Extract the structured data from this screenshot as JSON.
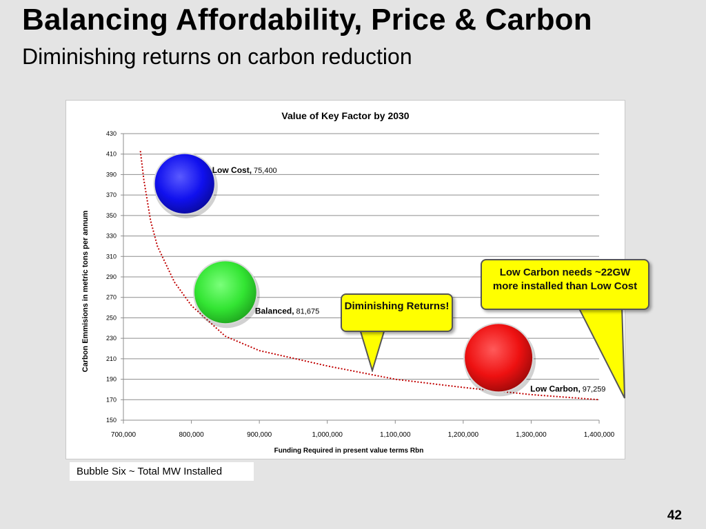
{
  "slide": {
    "title": "Balancing Affordability, Price & Carbon",
    "subtitle": "Diminishing returns on carbon reduction",
    "footnote": "Bubble Six ~ Total MW Installed",
    "page_number": "42"
  },
  "callouts": {
    "diminishing": "Diminishing Returns!",
    "low_carbon_needs": "Low Carbon needs ~22GW more installed than Low Cost"
  },
  "colors": {
    "low_cost": "#1010ee",
    "balanced": "#33e533",
    "low_carbon": "#ee1111",
    "trendline": "#c00000",
    "callout_fill": "#ffff00"
  },
  "chart_data": {
    "type": "scatter",
    "title": "Value of Key Factor by 2030",
    "xlabel": "Funding Required in present value terms Rbn",
    "ylabel": "Carbon Emmisions in metric tons per annum",
    "xlim": [
      700000,
      1400000
    ],
    "ylim": [
      150,
      430
    ],
    "x_ticks": [
      "700,000",
      "800,000",
      "900,000",
      "1,000,000",
      "1,100,000",
      "1,200,000",
      "1,300,000",
      "1,400,000"
    ],
    "y_ticks": [
      "150",
      "170",
      "190",
      "210",
      "230",
      "250",
      "270",
      "290",
      "310",
      "330",
      "350",
      "370",
      "390",
      "410",
      "430"
    ],
    "grid": "horizontal",
    "series": [
      {
        "name": "Low Cost",
        "x": 790000,
        "y": 381,
        "size_label": "75,400"
      },
      {
        "name": "Balanced",
        "x": 850000,
        "y": 275,
        "size_label": "81,675"
      },
      {
        "name": "Low Carbon",
        "x": 1252000,
        "y": 211,
        "size_label": "97,259"
      }
    ],
    "trendline": {
      "style": "dotted",
      "points": [
        [
          725000,
          413
        ],
        [
          730000,
          385
        ],
        [
          740000,
          345
        ],
        [
          750000,
          320
        ],
        [
          775000,
          285
        ],
        [
          800000,
          262
        ],
        [
          850000,
          232
        ],
        [
          900000,
          218
        ],
        [
          1000000,
          203
        ],
        [
          1100000,
          190
        ],
        [
          1200000,
          182
        ],
        [
          1300000,
          175
        ],
        [
          1400000,
          170
        ]
      ]
    }
  }
}
